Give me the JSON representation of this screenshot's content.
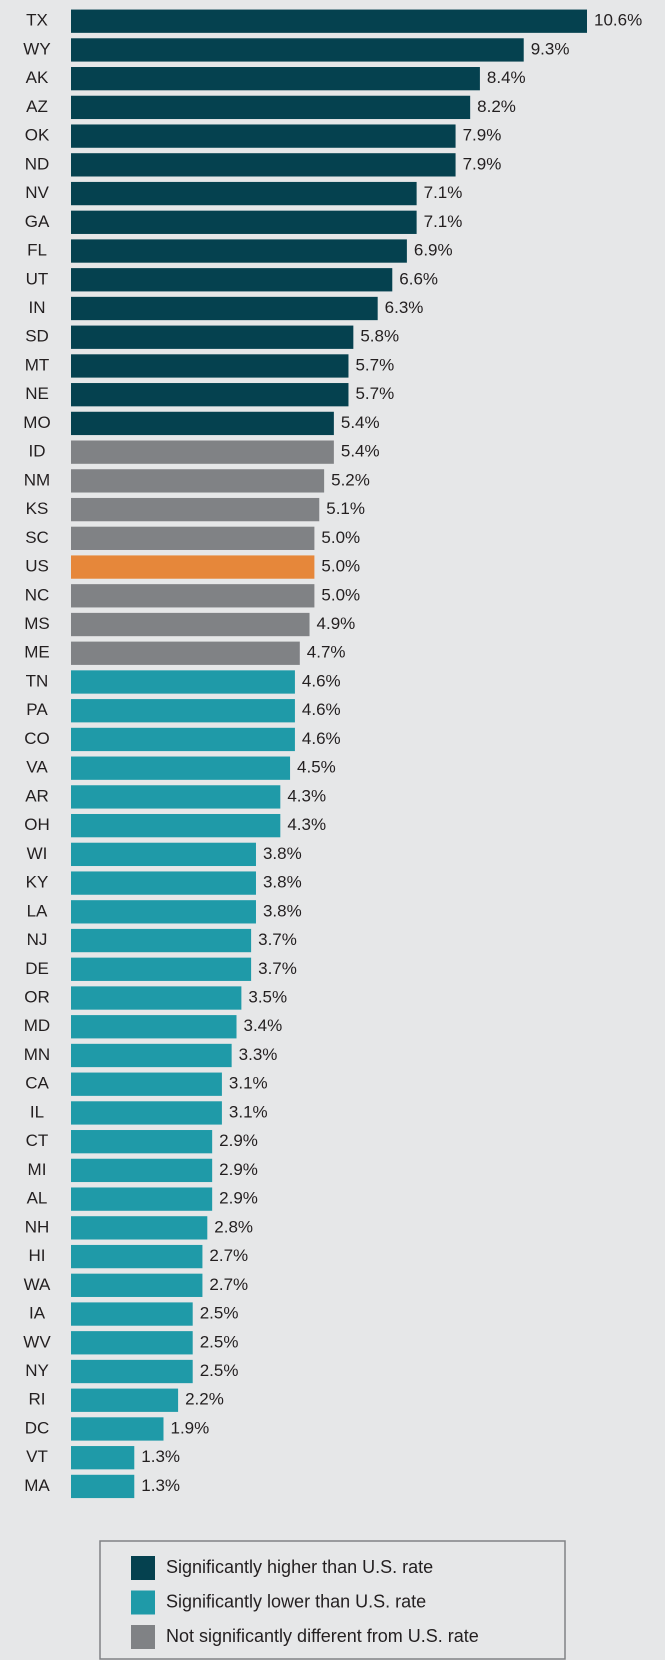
{
  "chart_data": {
    "type": "bar",
    "categories": [
      "TX",
      "WY",
      "AK",
      "AZ",
      "OK",
      "ND",
      "NV",
      "GA",
      "FL",
      "UT",
      "IN",
      "SD",
      "MT",
      "NE",
      "MO",
      "ID",
      "NM",
      "KS",
      "SC",
      "US",
      "NC",
      "MS",
      "ME",
      "TN",
      "PA",
      "CO",
      "VA",
      "AR",
      "OH",
      "WI",
      "KY",
      "LA",
      "NJ",
      "DE",
      "OR",
      "MD",
      "MN",
      "CA",
      "IL",
      "CT",
      "MI",
      "AL",
      "NH",
      "HI",
      "WA",
      "IA",
      "WV",
      "NY",
      "RI",
      "DC",
      "VT",
      "MA"
    ],
    "values": [
      10.6,
      9.3,
      8.4,
      8.2,
      7.9,
      7.9,
      7.1,
      7.1,
      6.9,
      6.6,
      6.3,
      5.8,
      5.7,
      5.7,
      5.4,
      5.4,
      5.2,
      5.1,
      5.0,
      5.0,
      5.0,
      4.9,
      4.7,
      4.6,
      4.6,
      4.6,
      4.5,
      4.3,
      4.3,
      3.8,
      3.8,
      3.8,
      3.7,
      3.7,
      3.5,
      3.4,
      3.3,
      3.1,
      3.1,
      2.9,
      2.9,
      2.9,
      2.8,
      2.7,
      2.7,
      2.5,
      2.5,
      2.5,
      2.2,
      1.9,
      1.3,
      1.3
    ],
    "value_labels": [
      "10.6%",
      "9.3%",
      "8.4%",
      "8.2%",
      "7.9%",
      "7.9%",
      "7.1%",
      "7.1%",
      "6.9%",
      "6.6%",
      "6.3%",
      "5.8%",
      "5.7%",
      "5.7%",
      "5.4%",
      "5.4%",
      "5.2%",
      "5.1%",
      "5.0%",
      "5.0%",
      "5.0%",
      "4.9%",
      "4.7%",
      "4.6%",
      "4.6%",
      "4.6%",
      "4.5%",
      "4.3%",
      "4.3%",
      "3.8%",
      "3.8%",
      "3.8%",
      "3.7%",
      "3.7%",
      "3.5%",
      "3.4%",
      "3.3%",
      "3.1%",
      "3.1%",
      "2.9%",
      "2.9%",
      "2.9%",
      "2.8%",
      "2.7%",
      "2.7%",
      "2.5%",
      "2.5%",
      "2.5%",
      "2.2%",
      "1.9%",
      "1.3%",
      "1.3%"
    ],
    "colors": [
      "#05414f",
      "#05414f",
      "#05414f",
      "#05414f",
      "#05414f",
      "#05414f",
      "#05414f",
      "#05414f",
      "#05414f",
      "#05414f",
      "#05414f",
      "#05414f",
      "#05414f",
      "#05414f",
      "#05414f",
      "#808285",
      "#808285",
      "#808285",
      "#808285",
      "#e6873a",
      "#808285",
      "#808285",
      "#808285",
      "#1f9aa8",
      "#1f9aa8",
      "#1f9aa8",
      "#1f9aa8",
      "#1f9aa8",
      "#1f9aa8",
      "#1f9aa8",
      "#1f9aa8",
      "#1f9aa8",
      "#1f9aa8",
      "#1f9aa8",
      "#1f9aa8",
      "#1f9aa8",
      "#1f9aa8",
      "#1f9aa8",
      "#1f9aa8",
      "#1f9aa8",
      "#1f9aa8",
      "#1f9aa8",
      "#1f9aa8",
      "#1f9aa8",
      "#1f9aa8",
      "#1f9aa8",
      "#1f9aa8",
      "#1f9aa8",
      "#1f9aa8",
      "#1f9aa8",
      "#1f9aa8",
      "#1f9aa8"
    ],
    "legend": [
      {
        "label": "Significantly higher than U.S. rate",
        "color": "#05414f"
      },
      {
        "label": "Significantly lower than U.S. rate",
        "color": "#1f9aa8"
      },
      {
        "label": "Not significantly different from U.S. rate",
        "color": "#808285"
      }
    ]
  }
}
